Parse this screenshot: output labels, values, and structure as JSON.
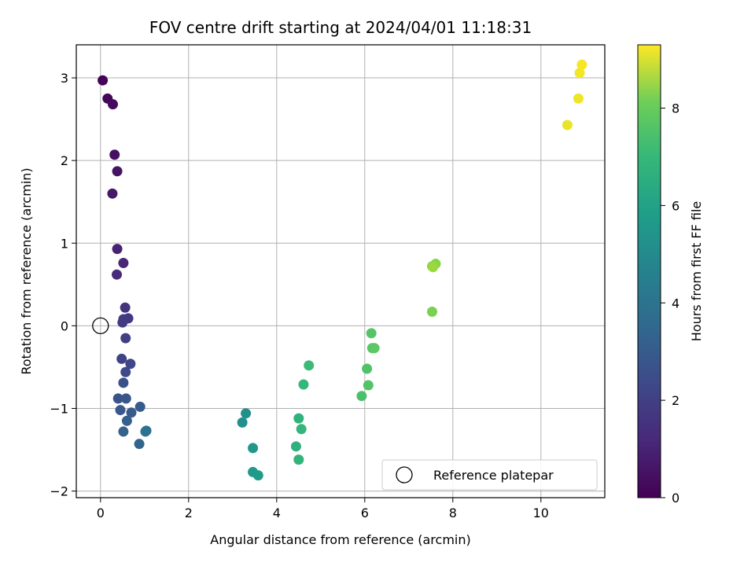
{
  "chart_data": {
    "type": "scatter",
    "title": "FOV centre drift starting at 2024/04/01 11:18:31",
    "xlabel": "Angular distance from reference (arcmin)",
    "ylabel": "Rotation from reference (arcmin)",
    "xlim": [
      -0.55,
      11.45
    ],
    "ylim": [
      -2.08,
      3.4
    ],
    "xticks": [
      0,
      2,
      4,
      6,
      8,
      10
    ],
    "yticks": [
      -2,
      -1,
      0,
      1,
      2,
      3
    ],
    "grid": true,
    "legend": {
      "position": "lower-right",
      "entries": [
        "Reference platepar"
      ]
    },
    "reference_point": {
      "x": 0,
      "y": 0,
      "marker": "open-circle"
    },
    "colorbar": {
      "label": "Hours from first FF file",
      "range": [
        0,
        9.3
      ],
      "ticks": [
        0,
        2,
        4,
        6,
        8
      ],
      "colormap": "viridis"
    },
    "points": [
      {
        "x": 0.05,
        "y": 2.97,
        "c": 0.05
      },
      {
        "x": 0.16,
        "y": 2.75,
        "c": 0.15
      },
      {
        "x": 0.28,
        "y": 2.68,
        "c": 0.25
      },
      {
        "x": 0.32,
        "y": 2.07,
        "c": 0.4
      },
      {
        "x": 0.38,
        "y": 1.87,
        "c": 0.5
      },
      {
        "x": 0.27,
        "y": 1.6,
        "c": 0.6
      },
      {
        "x": 0.38,
        "y": 0.93,
        "c": 0.9
      },
      {
        "x": 0.52,
        "y": 0.76,
        "c": 1.0
      },
      {
        "x": 0.37,
        "y": 0.62,
        "c": 1.1
      },
      {
        "x": 0.56,
        "y": 0.22,
        "c": 1.4
      },
      {
        "x": 0.63,
        "y": 0.09,
        "c": 1.5
      },
      {
        "x": 0.52,
        "y": 0.08,
        "c": 1.55
      },
      {
        "x": 0.5,
        "y": 0.04,
        "c": 1.6
      },
      {
        "x": 0.57,
        "y": -0.15,
        "c": 1.75
      },
      {
        "x": 0.48,
        "y": -0.4,
        "c": 1.9
      },
      {
        "x": 0.68,
        "y": -0.46,
        "c": 2.0
      },
      {
        "x": 0.57,
        "y": -0.56,
        "c": 2.1
      },
      {
        "x": 0.52,
        "y": -0.69,
        "c": 2.3
      },
      {
        "x": 0.4,
        "y": -0.88,
        "c": 2.4
      },
      {
        "x": 0.58,
        "y": -0.88,
        "c": 2.5
      },
      {
        "x": 0.45,
        "y": -1.02,
        "c": 2.6
      },
      {
        "x": 0.7,
        "y": -1.05,
        "c": 2.65
      },
      {
        "x": 0.9,
        "y": -0.98,
        "c": 2.7
      },
      {
        "x": 0.6,
        "y": -1.15,
        "c": 2.8
      },
      {
        "x": 0.52,
        "y": -1.28,
        "c": 2.9
      },
      {
        "x": 0.88,
        "y": -1.43,
        "c": 3.0
      },
      {
        "x": 1.04,
        "y": -1.27,
        "c": 3.4
      },
      {
        "x": 1.02,
        "y": -1.28,
        "c": 3.5
      },
      {
        "x": 3.22,
        "y": -1.17,
        "c": 4.6
      },
      {
        "x": 3.3,
        "y": -1.06,
        "c": 4.7
      },
      {
        "x": 3.46,
        "y": -1.48,
        "c": 4.9
      },
      {
        "x": 3.46,
        "y": -1.77,
        "c": 5.0
      },
      {
        "x": 3.58,
        "y": -1.81,
        "c": 5.1
      },
      {
        "x": 4.44,
        "y": -1.46,
        "c": 5.9
      },
      {
        "x": 4.5,
        "y": -1.12,
        "c": 6.0
      },
      {
        "x": 4.5,
        "y": -1.62,
        "c": 6.05
      },
      {
        "x": 4.56,
        "y": -1.25,
        "c": 6.1
      },
      {
        "x": 4.61,
        "y": -0.71,
        "c": 6.2
      },
      {
        "x": 4.73,
        "y": -0.48,
        "c": 6.3
      },
      {
        "x": 5.93,
        "y": -0.85,
        "c": 6.6
      },
      {
        "x": 6.05,
        "y": -0.52,
        "c": 6.7
      },
      {
        "x": 6.08,
        "y": -0.72,
        "c": 6.75
      },
      {
        "x": 6.15,
        "y": -0.09,
        "c": 6.8
      },
      {
        "x": 6.17,
        "y": -0.27,
        "c": 6.85
      },
      {
        "x": 6.22,
        "y": -0.27,
        "c": 6.9
      },
      {
        "x": 7.53,
        "y": 0.17,
        "c": 7.4
      },
      {
        "x": 7.53,
        "y": 0.72,
        "c": 7.5
      },
      {
        "x": 7.61,
        "y": 0.75,
        "c": 7.6
      },
      {
        "x": 7.55,
        "y": 0.71,
        "c": 7.9
      },
      {
        "x": 10.6,
        "y": 2.43,
        "c": 9.0
      },
      {
        "x": 10.85,
        "y": 2.75,
        "c": 9.1
      },
      {
        "x": 10.88,
        "y": 3.06,
        "c": 9.15
      },
      {
        "x": 10.93,
        "y": 3.16,
        "c": 9.2
      }
    ]
  }
}
